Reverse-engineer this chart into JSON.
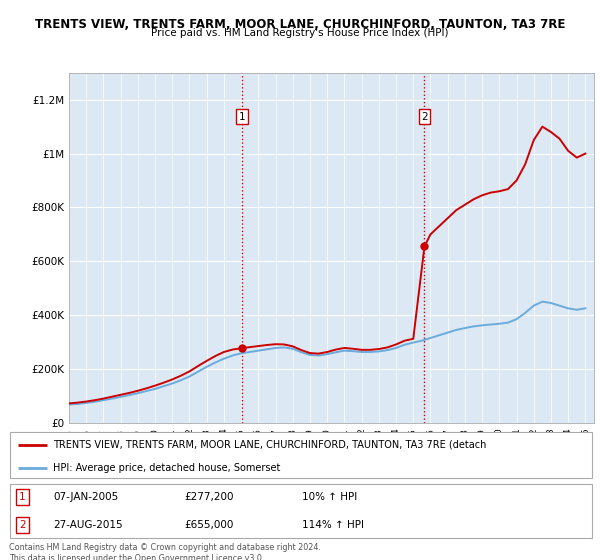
{
  "title_line1": "TRENTS VIEW, TRENTS FARM, MOOR LANE, CHURCHINFORD, TAUNTON, TA3 7RE",
  "title_line2": "Price paid vs. HM Land Registry's House Price Index (HPI)",
  "bg_color": "#dce9f5",
  "outer_bg": "#ffffff",
  "ylim": [
    0,
    1300000
  ],
  "yticks": [
    0,
    200000,
    400000,
    600000,
    800000,
    1000000,
    1200000
  ],
  "ytick_labels": [
    "£0",
    "£200K",
    "£400K",
    "£600K",
    "£800K",
    "£1M",
    "£1.2M"
  ],
  "xlim_start": 1995.0,
  "xlim_end": 2025.5,
  "years_start": 1995,
  "years_end": 2026,
  "sale1_x": 2005.03,
  "sale1_y": 277200,
  "sale2_x": 2015.65,
  "sale2_y": 655000,
  "sale1_label": "1",
  "sale2_label": "2",
  "vline1_x": 2005.03,
  "vline2_x": 2015.65,
  "vline_color": "#cc0000",
  "vline_style": ":",
  "red_line_color": "#cc0000",
  "blue_line_color": "#6aabdb",
  "legend_label_red": "TRENTS VIEW, TRENTS FARM, MOOR LANE, CHURCHINFORD, TAUNTON, TA3 7RE (detach",
  "legend_label_blue": "HPI: Average price, detached house, Somerset",
  "table_row1": [
    "1",
    "07-JAN-2005",
    "£277,200",
    "10% ↑ HPI"
  ],
  "table_row2": [
    "2",
    "27-AUG-2015",
    "£655,000",
    "114% ↑ HPI"
  ],
  "footnote": "Contains HM Land Registry data © Crown copyright and database right 2024.\nThis data is licensed under the Open Government Licence v3.0.",
  "hpi_x": [
    1995.0,
    1995.5,
    1996.0,
    1996.5,
    1997.0,
    1997.5,
    1998.0,
    1998.5,
    1999.0,
    1999.5,
    2000.0,
    2000.5,
    2001.0,
    2001.5,
    2002.0,
    2002.5,
    2003.0,
    2003.5,
    2004.0,
    2004.5,
    2005.0,
    2005.5,
    2006.0,
    2006.5,
    2007.0,
    2007.5,
    2008.0,
    2008.5,
    2009.0,
    2009.5,
    2010.0,
    2010.5,
    2011.0,
    2011.5,
    2012.0,
    2012.5,
    2013.0,
    2013.5,
    2014.0,
    2014.5,
    2015.0,
    2015.5,
    2016.0,
    2016.5,
    2017.0,
    2017.5,
    2018.0,
    2018.5,
    2019.0,
    2019.5,
    2020.0,
    2020.5,
    2021.0,
    2021.5,
    2022.0,
    2022.5,
    2023.0,
    2023.5,
    2024.0,
    2024.5,
    2025.0
  ],
  "hpi_y": [
    68000,
    70000,
    74000,
    78000,
    84000,
    90000,
    96000,
    103000,
    110000,
    118000,
    126000,
    136000,
    146000,
    158000,
    172000,
    190000,
    208000,
    224000,
    238000,
    250000,
    258000,
    263000,
    268000,
    273000,
    278000,
    280000,
    275000,
    262000,
    252000,
    250000,
    255000,
    262000,
    268000,
    266000,
    263000,
    263000,
    265000,
    270000,
    278000,
    290000,
    298000,
    305000,
    315000,
    325000,
    335000,
    345000,
    352000,
    358000,
    362000,
    365000,
    368000,
    372000,
    385000,
    408000,
    435000,
    450000,
    445000,
    435000,
    425000,
    420000,
    425000
  ],
  "red_x": [
    1995.0,
    1995.5,
    1996.0,
    1996.5,
    1997.0,
    1997.5,
    1998.0,
    1998.5,
    1999.0,
    1999.5,
    2000.0,
    2000.5,
    2001.0,
    2001.5,
    2002.0,
    2002.5,
    2003.0,
    2003.5,
    2004.0,
    2004.5,
    2005.03,
    2005.5,
    2006.0,
    2006.5,
    2007.0,
    2007.5,
    2008.0,
    2008.5,
    2009.0,
    2009.5,
    2010.0,
    2010.5,
    2011.0,
    2011.5,
    2012.0,
    2012.5,
    2013.0,
    2013.5,
    2014.0,
    2014.5,
    2015.0,
    2015.65,
    2016.0,
    2016.5,
    2017.0,
    2017.5,
    2018.0,
    2018.5,
    2019.0,
    2019.5,
    2020.0,
    2020.5,
    2021.0,
    2021.5,
    2022.0,
    2022.5,
    2023.0,
    2023.5,
    2024.0,
    2024.5,
    2025.0
  ],
  "red_y": [
    72000,
    75000,
    79000,
    84000,
    90000,
    97000,
    104000,
    111000,
    119000,
    128000,
    138000,
    149000,
    161000,
    175000,
    191000,
    211000,
    230000,
    248000,
    263000,
    272000,
    277200,
    281000,
    285000,
    289000,
    292000,
    291000,
    284000,
    270000,
    259000,
    257000,
    263000,
    272000,
    278000,
    275000,
    271000,
    271000,
    274000,
    280000,
    291000,
    305000,
    312000,
    655000,
    700000,
    730000,
    760000,
    790000,
    810000,
    830000,
    845000,
    855000,
    860000,
    868000,
    900000,
    960000,
    1050000,
    1100000,
    1080000,
    1055000,
    1010000,
    985000,
    1000000
  ]
}
